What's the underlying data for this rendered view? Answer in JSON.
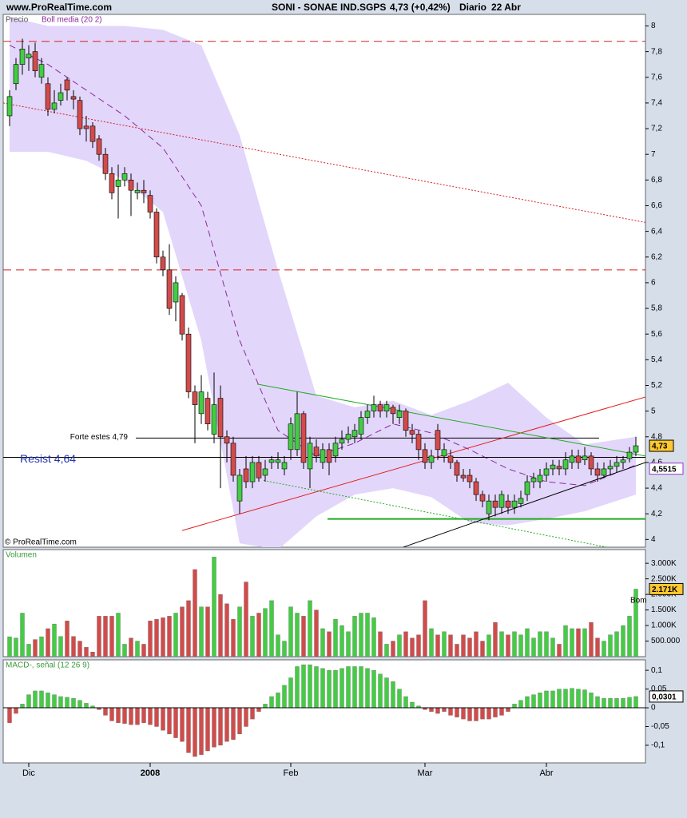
{
  "header": {
    "site": "www.ProRealTime.com",
    "symbol": "SONI - SONAE IND.SGPS",
    "quote": "4,73 (+0,42%)",
    "period": "Diario",
    "date": "22 Abr"
  },
  "chart_data": [
    {
      "type": "candlestick",
      "title": "Precio",
      "copyright": "© ProRealTime.com",
      "xlim": [
        -1,
        99.5
      ],
      "ylim": [
        3.94,
        8.09
      ],
      "up_color": "#44cc44",
      "down_color": "#d24b4b",
      "yticks": [
        4,
        {
          "value": 4.2,
          "label": "4,2"
        },
        {
          "value": 4.4,
          "label": "4,4"
        },
        {
          "value": 4.6,
          "label": "4,6"
        },
        {
          "value": 4.8,
          "label": "4,8"
        },
        5,
        {
          "value": 5.2,
          "label": "5,2"
        },
        {
          "value": 5.4,
          "label": "5,4"
        },
        {
          "value": 5.6,
          "label": "5,6"
        },
        {
          "value": 5.8,
          "label": "5,8"
        },
        6,
        {
          "value": 6.2,
          "label": "6,2"
        },
        {
          "value": 6.4,
          "label": "6,4"
        },
        {
          "value": 6.6,
          "label": "6,6"
        },
        {
          "value": 6.8,
          "label": "6,8"
        },
        7,
        {
          "value": 7.2,
          "label": "7,2"
        },
        {
          "value": 7.4,
          "label": "7,4"
        },
        {
          "value": 7.6,
          "label": "7,6"
        },
        {
          "value": 7.8,
          "label": "7,8"
        },
        8
      ],
      "open": [
        7.3,
        7.55,
        7.7,
        7.75,
        7.8,
        7.6,
        7.55,
        7.35,
        7.42,
        7.58,
        7.45,
        7.42,
        7.22,
        7.22,
        7.12,
        7.0,
        6.85,
        6.75,
        6.8,
        6.8,
        6.7,
        6.72,
        6.68,
        6.55,
        6.2,
        6.1,
        5.85,
        5.9,
        5.6,
        5.15,
        4.98,
        5.1,
        4.82,
        5.1,
        4.8,
        4.75,
        4.3,
        4.55,
        4.45,
        4.6,
        4.5,
        4.6,
        4.6,
        4.55,
        4.7,
        4.7,
        4.98,
        4.55,
        4.72,
        4.6,
        4.7,
        4.65,
        4.75,
        4.78,
        4.8,
        4.82,
        4.95,
        5.0,
        5.05,
        5.0,
        5.03,
        4.95,
        5.0,
        4.85,
        4.82,
        4.7,
        4.6,
        4.85,
        4.65,
        4.65,
        4.6,
        4.5,
        4.5,
        4.45,
        4.35,
        4.2,
        4.3,
        4.25,
        4.3,
        4.25,
        4.28,
        4.35,
        4.45,
        4.45,
        4.5,
        4.55,
        4.57,
        4.55,
        4.6,
        4.65,
        4.62,
        4.65,
        4.55,
        4.5,
        4.55,
        4.57,
        4.6,
        4.63,
        4.68
      ],
      "high": [
        7.5,
        7.75,
        7.9,
        7.85,
        7.87,
        7.75,
        7.6,
        7.5,
        7.55,
        7.6,
        7.5,
        7.45,
        7.3,
        7.25,
        7.15,
        7.05,
        6.9,
        6.92,
        6.9,
        6.85,
        6.78,
        6.8,
        6.72,
        6.58,
        6.25,
        6.3,
        6.05,
        5.92,
        5.65,
        5.2,
        5.28,
        5.15,
        5.3,
        5.2,
        4.85,
        4.8,
        4.55,
        4.65,
        4.65,
        4.65,
        4.62,
        4.65,
        4.68,
        4.65,
        4.95,
        5.15,
        5.0,
        4.8,
        4.78,
        4.75,
        4.75,
        4.8,
        4.85,
        4.88,
        4.9,
        5.0,
        5.05,
        5.12,
        5.08,
        5.08,
        5.05,
        5.05,
        5.02,
        4.9,
        4.85,
        4.75,
        4.7,
        4.9,
        4.75,
        4.7,
        4.62,
        4.55,
        4.55,
        4.48,
        4.38,
        4.35,
        4.35,
        4.38,
        4.35,
        4.35,
        4.38,
        4.5,
        4.52,
        4.55,
        4.6,
        4.62,
        4.62,
        4.68,
        4.7,
        4.7,
        4.72,
        4.68,
        4.6,
        4.6,
        4.62,
        4.65,
        4.65,
        4.72,
        4.8
      ],
      "low": [
        7.22,
        7.5,
        7.62,
        7.65,
        7.6,
        7.55,
        7.3,
        7.32,
        7.38,
        7.42,
        7.35,
        7.15,
        7.1,
        7.05,
        6.95,
        6.8,
        6.65,
        6.5,
        6.75,
        6.52,
        6.65,
        6.62,
        6.5,
        6.15,
        6.05,
        5.75,
        5.7,
        5.55,
        5.1,
        4.75,
        4.9,
        4.85,
        4.75,
        4.4,
        4.6,
        4.45,
        4.2,
        4.4,
        4.4,
        4.45,
        4.45,
        4.55,
        4.55,
        4.5,
        4.62,
        4.65,
        4.55,
        4.4,
        4.6,
        4.55,
        4.5,
        4.6,
        4.7,
        4.75,
        4.75,
        4.78,
        4.9,
        4.95,
        4.95,
        4.95,
        4.9,
        4.9,
        4.8,
        4.75,
        4.62,
        4.55,
        4.55,
        4.62,
        4.6,
        4.55,
        4.45,
        4.45,
        4.4,
        4.3,
        4.25,
        4.15,
        4.18,
        4.2,
        4.2,
        4.2,
        4.25,
        4.3,
        4.4,
        4.4,
        4.45,
        4.5,
        4.5,
        4.5,
        4.55,
        4.55,
        4.58,
        4.5,
        4.45,
        4.48,
        4.5,
        4.52,
        4.55,
        4.6,
        4.65
      ],
      "close": [
        7.45,
        7.7,
        7.82,
        7.78,
        7.65,
        7.7,
        7.35,
        7.4,
        7.48,
        7.5,
        7.43,
        7.2,
        7.2,
        7.1,
        7.0,
        6.85,
        6.7,
        6.8,
        6.85,
        6.72,
        6.72,
        6.7,
        6.55,
        6.2,
        6.1,
        5.8,
        6.0,
        5.6,
        5.15,
        5.05,
        5.15,
        4.9,
        5.05,
        4.8,
        4.75,
        4.5,
        4.5,
        4.45,
        4.6,
        4.48,
        4.55,
        4.62,
        4.62,
        4.6,
        4.9,
        4.98,
        4.6,
        4.75,
        4.65,
        4.7,
        4.6,
        4.75,
        4.78,
        4.82,
        4.85,
        4.95,
        5.0,
        5.05,
        5.0,
        5.05,
        4.98,
        5.0,
        4.85,
        4.82,
        4.7,
        4.6,
        4.65,
        4.7,
        4.7,
        4.6,
        4.5,
        4.48,
        4.45,
        4.35,
        4.3,
        4.3,
        4.25,
        4.35,
        4.25,
        4.3,
        4.32,
        4.45,
        4.48,
        4.5,
        4.55,
        4.58,
        4.55,
        4.62,
        4.65,
        4.6,
        4.65,
        4.55,
        4.5,
        4.55,
        4.57,
        4.6,
        4.62,
        4.68,
        4.73
      ],
      "bollinger": {
        "name": "Boll media (20 2)",
        "color": "#e3d6fb",
        "line_color": "#8a2b9a",
        "x": [
          0,
          6,
          12,
          18,
          24,
          30,
          36,
          42,
          48,
          54,
          60,
          66,
          72,
          78,
          84,
          90,
          98
        ],
        "upper": [
          8.07,
          8.0,
          8.0,
          8.0,
          7.97,
          7.85,
          7.15,
          6.1,
          5.12,
          5.03,
          5.08,
          4.97,
          5.08,
          5.22,
          4.95,
          4.74,
          4.8
        ],
        "lower": [
          7.02,
          7.02,
          6.95,
          6.8,
          6.55,
          5.55,
          3.97,
          3.92,
          4.18,
          4.35,
          4.4,
          4.33,
          4.13,
          4.11,
          4.16,
          4.22,
          4.35
        ],
        "middle": [
          7.85,
          7.7,
          7.5,
          7.3,
          7.05,
          6.6,
          5.55,
          4.85,
          4.65,
          4.75,
          4.9,
          4.83,
          4.7,
          4.55,
          4.45,
          4.42,
          4.58
        ]
      },
      "lines": [
        {
          "x": [
            -1,
            99.5
          ],
          "y": [
            7.88,
            7.88
          ],
          "color": "#d42020",
          "style": "dashed"
        },
        {
          "x": [
            -1,
            99.5
          ],
          "y": [
            6.1,
            6.1
          ],
          "color": "#d42020",
          "style": "dashed"
        },
        {
          "x": [
            -1,
            99.5
          ],
          "y": [
            7.4,
            6.47
          ],
          "color": "#d42020",
          "style": "dotted"
        },
        {
          "x": [
            19.75,
            92.25
          ],
          "y": [
            4.79,
            4.79
          ],
          "color": "#000000",
          "style": "solid",
          "label": "Forte estes 4,79",
          "label_color": "#000000"
        },
        {
          "x": [
            -1,
            99.5
          ],
          "y": [
            4.64,
            4.64
          ],
          "color": "#000000",
          "style": "solid",
          "label": "Resist 4,64",
          "label_color": "#2233aa"
        },
        {
          "x": [
            49.75,
            99.5
          ],
          "y": [
            4.16,
            4.16
          ],
          "color": "#22aa22",
          "style": "solid",
          "width": 2
        },
        {
          "x": [
            27,
            99.5
          ],
          "y": [
            4.07,
            5.11
          ],
          "color": "#e02020",
          "style": "solid"
        },
        {
          "x": [
            38.75,
            99.5
          ],
          "y": [
            5.21,
            4.65
          ],
          "color": "#22aa22",
          "style": "solid"
        },
        {
          "x": [
            39.75,
            93.5
          ],
          "y": [
            4.46,
            3.94
          ],
          "color": "#22aa22",
          "style": "dotted"
        },
        {
          "x": [
            61.6,
            99.5
          ],
          "y": [
            3.94,
            4.6
          ],
          "color": "#000000",
          "style": "solid"
        }
      ],
      "value_boxes": [
        {
          "value": 4.73,
          "label": "4,73",
          "fill": "#ffc830",
          "stroke": "#000000"
        },
        {
          "value": 4.5515,
          "label": "4,5515",
          "fill": "#ffffff",
          "stroke": "#9933cc"
        }
      ]
    },
    {
      "type": "bar",
      "title": "Volumen",
      "annotation": "Bom",
      "ylim": [
        0,
        3440000
      ],
      "up_color": "#44cc44",
      "down_color": "#d24b4b",
      "yticks": [
        {
          "value": 500000,
          "label": "500.000"
        },
        {
          "value": 1000000,
          "label": "1.000K"
        },
        {
          "value": 1500000,
          "label": "1.500K"
        },
        {
          "value": 2000000,
          "label": "2.000K"
        },
        {
          "value": 2500000,
          "label": "2.500K"
        },
        {
          "value": 3000000,
          "label": "3.000K"
        }
      ],
      "values": [
        640000,
        600000,
        1400000,
        400000,
        550000,
        640000,
        900000,
        1050000,
        650000,
        1150000,
        650000,
        500000,
        300000,
        150000,
        1300000,
        1300000,
        1300000,
        1400000,
        400000,
        600000,
        500000,
        400000,
        1150000,
        1200000,
        1250000,
        1300000,
        1400000,
        1600000,
        1800000,
        2800000,
        1600000,
        1600000,
        3200000,
        2000000,
        1700000,
        1200000,
        1600000,
        2400000,
        1300000,
        1400000,
        1550000,
        1800000,
        700000,
        500000,
        1600000,
        1400000,
        1300000,
        1800000,
        1500000,
        900000,
        800000,
        1200000,
        1000000,
        800000,
        1300000,
        1400000,
        1400000,
        1250000,
        800000,
        400000,
        500000,
        700000,
        800000,
        600000,
        700000,
        1800000,
        900000,
        700000,
        800000,
        700000,
        400000,
        700000,
        600000,
        800000,
        500000,
        700000,
        1100000,
        800000,
        700000,
        800000,
        700000,
        900000,
        600000,
        800000,
        800000,
        600000,
        400000,
        1000000,
        900000,
        900000,
        900000,
        1100000,
        600000,
        500000,
        700000,
        800000,
        1000000,
        1300000,
        2171000
      ],
      "value_boxes": [
        {
          "value": 2171000,
          "label": "2.171K",
          "fill": "#ffc830",
          "stroke": "#000000"
        }
      ]
    },
    {
      "type": "bar",
      "title": "MACD-, señal (12 26 9)",
      "ylim": [
        -0.147,
        0.128
      ],
      "up_color": "#44cc44",
      "down_color": "#d24b4b",
      "yticks": [
        {
          "value": -0.1,
          "label": "-0,1"
        },
        {
          "value": -0.05,
          "label": "-0,05"
        },
        0,
        {
          "value": 0.05,
          "label": "0,05"
        },
        {
          "value": 0.1,
          "label": "0,1"
        }
      ],
      "categories": [
        null,
        null,
        null,
        "Dic",
        null,
        null,
        null,
        null,
        null,
        null,
        null,
        null,
        null,
        null,
        null,
        null,
        null,
        null,
        null,
        null,
        null,
        null,
        "2008",
        null,
        null,
        null,
        null,
        null,
        null,
        null,
        null,
        null,
        null,
        null,
        null,
        null,
        null,
        null,
        null,
        null,
        null,
        null,
        null,
        null,
        "Feb",
        null,
        null,
        null,
        null,
        null,
        null,
        null,
        null,
        null,
        null,
        null,
        null,
        null,
        null,
        null,
        null,
        null,
        null,
        null,
        null,
        "Mar",
        null,
        null,
        null,
        null,
        null,
        null,
        null,
        null,
        null,
        null,
        null,
        null,
        null,
        null,
        null,
        null,
        null,
        null,
        "Abr",
        null,
        null,
        null,
        null,
        null,
        null,
        null,
        null,
        null,
        null,
        null,
        null,
        null,
        null
      ],
      "values": [
        -0.04,
        -0.015,
        0.01,
        0.035,
        0.045,
        0.045,
        0.04,
        0.035,
        0.03,
        0.028,
        0.025,
        0.02,
        0.012,
        0.005,
        -0.005,
        -0.02,
        -0.035,
        -0.04,
        -0.042,
        -0.045,
        -0.045,
        -0.04,
        -0.045,
        -0.05,
        -0.06,
        -0.07,
        -0.08,
        -0.09,
        -0.12,
        -0.13,
        -0.125,
        -0.115,
        -0.105,
        -0.1,
        -0.09,
        -0.085,
        -0.07,
        -0.05,
        -0.03,
        -0.01,
        0.01,
        0.03,
        0.04,
        0.06,
        0.08,
        0.11,
        0.115,
        0.115,
        0.11,
        0.105,
        0.1,
        0.1,
        0.105,
        0.11,
        0.11,
        0.11,
        0.105,
        0.1,
        0.09,
        0.08,
        0.07,
        0.05,
        0.03,
        0.015,
        0.005,
        -0.005,
        -0.01,
        -0.015,
        -0.01,
        -0.02,
        -0.025,
        -0.03,
        -0.035,
        -0.035,
        -0.03,
        -0.03,
        -0.025,
        -0.02,
        -0.01,
        0.01,
        0.02,
        0.03,
        0.035,
        0.04,
        0.045,
        0.045,
        0.05,
        0.05,
        0.052,
        0.05,
        0.048,
        0.04,
        0.03,
        0.025,
        0.025,
        0.025,
        0.025,
        0.028,
        0.0301
      ],
      "value_boxes": [
        {
          "value": 0.0301,
          "label": "0,0301",
          "fill": "#ffffff",
          "stroke": "#000000"
        }
      ]
    }
  ]
}
